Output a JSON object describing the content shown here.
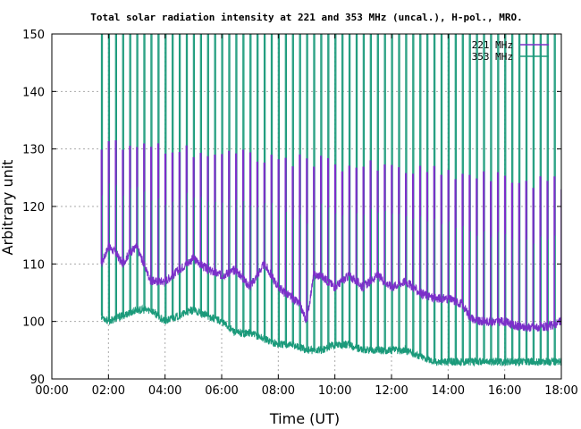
{
  "chart_data": {
    "type": "line",
    "title": "Total solar radiation intensity at 221 and 353 MHz (uncal.), H-pol., MRO.",
    "xlabel": "Time (UT)",
    "ylabel": "Arbitrary unit",
    "xlim": [
      "00:00",
      "18:00"
    ],
    "ylim": [
      90,
      150
    ],
    "x_ticks": [
      "00:00",
      "02:00",
      "04:00",
      "06:00",
      "08:00",
      "10:00",
      "12:00",
      "14:00",
      "16:00",
      "18:00"
    ],
    "y_ticks": [
      "90",
      "100",
      "110",
      "120",
      "130",
      "140",
      "150"
    ],
    "grid": true,
    "legend_position": "top-right",
    "calibration_spike_interval_minutes": 15,
    "series": [
      {
        "name": "221 MHz",
        "color": "#7b2fc9",
        "x": [
          "01:45",
          "02:00",
          "02:15",
          "02:30",
          "02:45",
          "03:00",
          "03:15",
          "03:30",
          "04:00",
          "04:30",
          "05:00",
          "05:30",
          "06:00",
          "06:30",
          "07:00",
          "07:30",
          "08:00",
          "08:30",
          "08:45",
          "09:00",
          "09:15",
          "09:30",
          "10:00",
          "10:30",
          "11:00",
          "11:30",
          "12:00",
          "12:30",
          "13:00",
          "13:30",
          "14:00",
          "14:30",
          "14:45",
          "15:00",
          "15:30",
          "16:00",
          "16:30",
          "17:00",
          "17:30",
          "18:00"
        ],
        "y": [
          110,
          113,
          112,
          110,
          112,
          113,
          110,
          107,
          107,
          109,
          111,
          109,
          108,
          109,
          106,
          110,
          106,
          104,
          103,
          100,
          108,
          108,
          106,
          108,
          106,
          108,
          106,
          107,
          105,
          104,
          104,
          103,
          101,
          100,
          100,
          100,
          99,
          99,
          99,
          100
        ],
        "spike_peak_first": 131,
        "spike_peak_last": 124
      },
      {
        "name": "353 MHz",
        "color": "#1a9a7a",
        "x": [
          "01:45",
          "02:00",
          "02:30",
          "03:00",
          "03:30",
          "04:00",
          "04:30",
          "05:00",
          "05:30",
          "06:00",
          "06:30",
          "07:00",
          "07:30",
          "08:00",
          "08:30",
          "09:00",
          "09:30",
          "10:00",
          "10:30",
          "11:00",
          "11:30",
          "12:00",
          "12:30",
          "13:00",
          "13:30",
          "14:00",
          "14:30",
          "15:00",
          "15:30",
          "16:00",
          "16:30",
          "17:00",
          "17:30",
          "18:00"
        ],
        "y": [
          101,
          100,
          101,
          102,
          102,
          100,
          101,
          102,
          101,
          100,
          98,
          98,
          97,
          96,
          96,
          95,
          95,
          96,
          96,
          95,
          95,
          95,
          95,
          94,
          93,
          93,
          93,
          93,
          93,
          93,
          93,
          93,
          93,
          93
        ],
        "spike_peak": 150
      }
    ]
  }
}
